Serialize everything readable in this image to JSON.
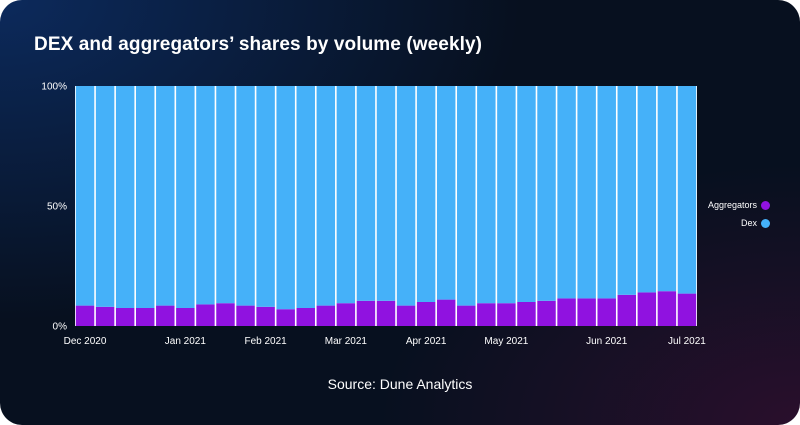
{
  "title": "DEX and aggregators’ shares by volume (weekly)",
  "source": "Source: Dune Analytics",
  "colors": {
    "aggregators": "#9012e0",
    "dex": "#45b1f9",
    "gap": "#ffffff"
  },
  "chart_data": {
    "type": "bar",
    "stacked": true,
    "normalized": true,
    "ylim": [
      0,
      100
    ],
    "yticks": [
      "0%",
      "50%",
      "100%"
    ],
    "x": [
      "2020-11-30",
      "2020-12-07",
      "2020-12-14",
      "2020-12-21",
      "2020-12-28",
      "2021-01-04",
      "2021-01-11",
      "2021-01-18",
      "2021-01-25",
      "2021-02-01",
      "2021-02-08",
      "2021-02-15",
      "2021-02-22",
      "2021-03-01",
      "2021-03-08",
      "2021-03-15",
      "2021-03-22",
      "2021-03-29",
      "2021-04-05",
      "2021-04-12",
      "2021-04-19",
      "2021-04-26",
      "2021-05-03",
      "2021-05-10",
      "2021-05-17",
      "2021-05-24",
      "2021-05-31",
      "2021-06-07",
      "2021-06-14",
      "2021-06-21",
      "2021-06-28"
    ],
    "xtick_labels": [
      {
        "label": "Dec 2020",
        "index": 0
      },
      {
        "label": "Jan 2021",
        "index": 5
      },
      {
        "label": "Feb 2021",
        "index": 9
      },
      {
        "label": "Mar 2021",
        "index": 13
      },
      {
        "label": "Apr 2021",
        "index": 17
      },
      {
        "label": "May 2021",
        "index": 21
      },
      {
        "label": "Jun 2021",
        "index": 26
      },
      {
        "label": "Jul 2021",
        "index": 30
      }
    ],
    "series": [
      {
        "name": "Aggregators",
        "values": [
          8.5,
          8,
          7.5,
          7.5,
          8.5,
          7.5,
          9,
          9.5,
          8.5,
          8,
          7,
          7.5,
          8.5,
          9.5,
          10.5,
          10.5,
          8.5,
          10,
          11,
          8.5,
          9.5,
          9.5,
          10,
          10.5,
          11.5,
          11.5,
          11.5,
          13,
          14,
          14.5,
          13.5
        ]
      },
      {
        "name": "Dex",
        "values": [
          91.5,
          92,
          92.5,
          92.5,
          91.5,
          92.5,
          91,
          90.5,
          91.5,
          92,
          93,
          92.5,
          91.5,
          90.5,
          89.5,
          89.5,
          91.5,
          90,
          89,
          91.5,
          90.5,
          90.5,
          90,
          89.5,
          88.5,
          88.5,
          88.5,
          87,
          86,
          85.5,
          86.5
        ]
      }
    ],
    "legend": [
      "Aggregators",
      "Dex"
    ],
    "legend_position": "right"
  }
}
